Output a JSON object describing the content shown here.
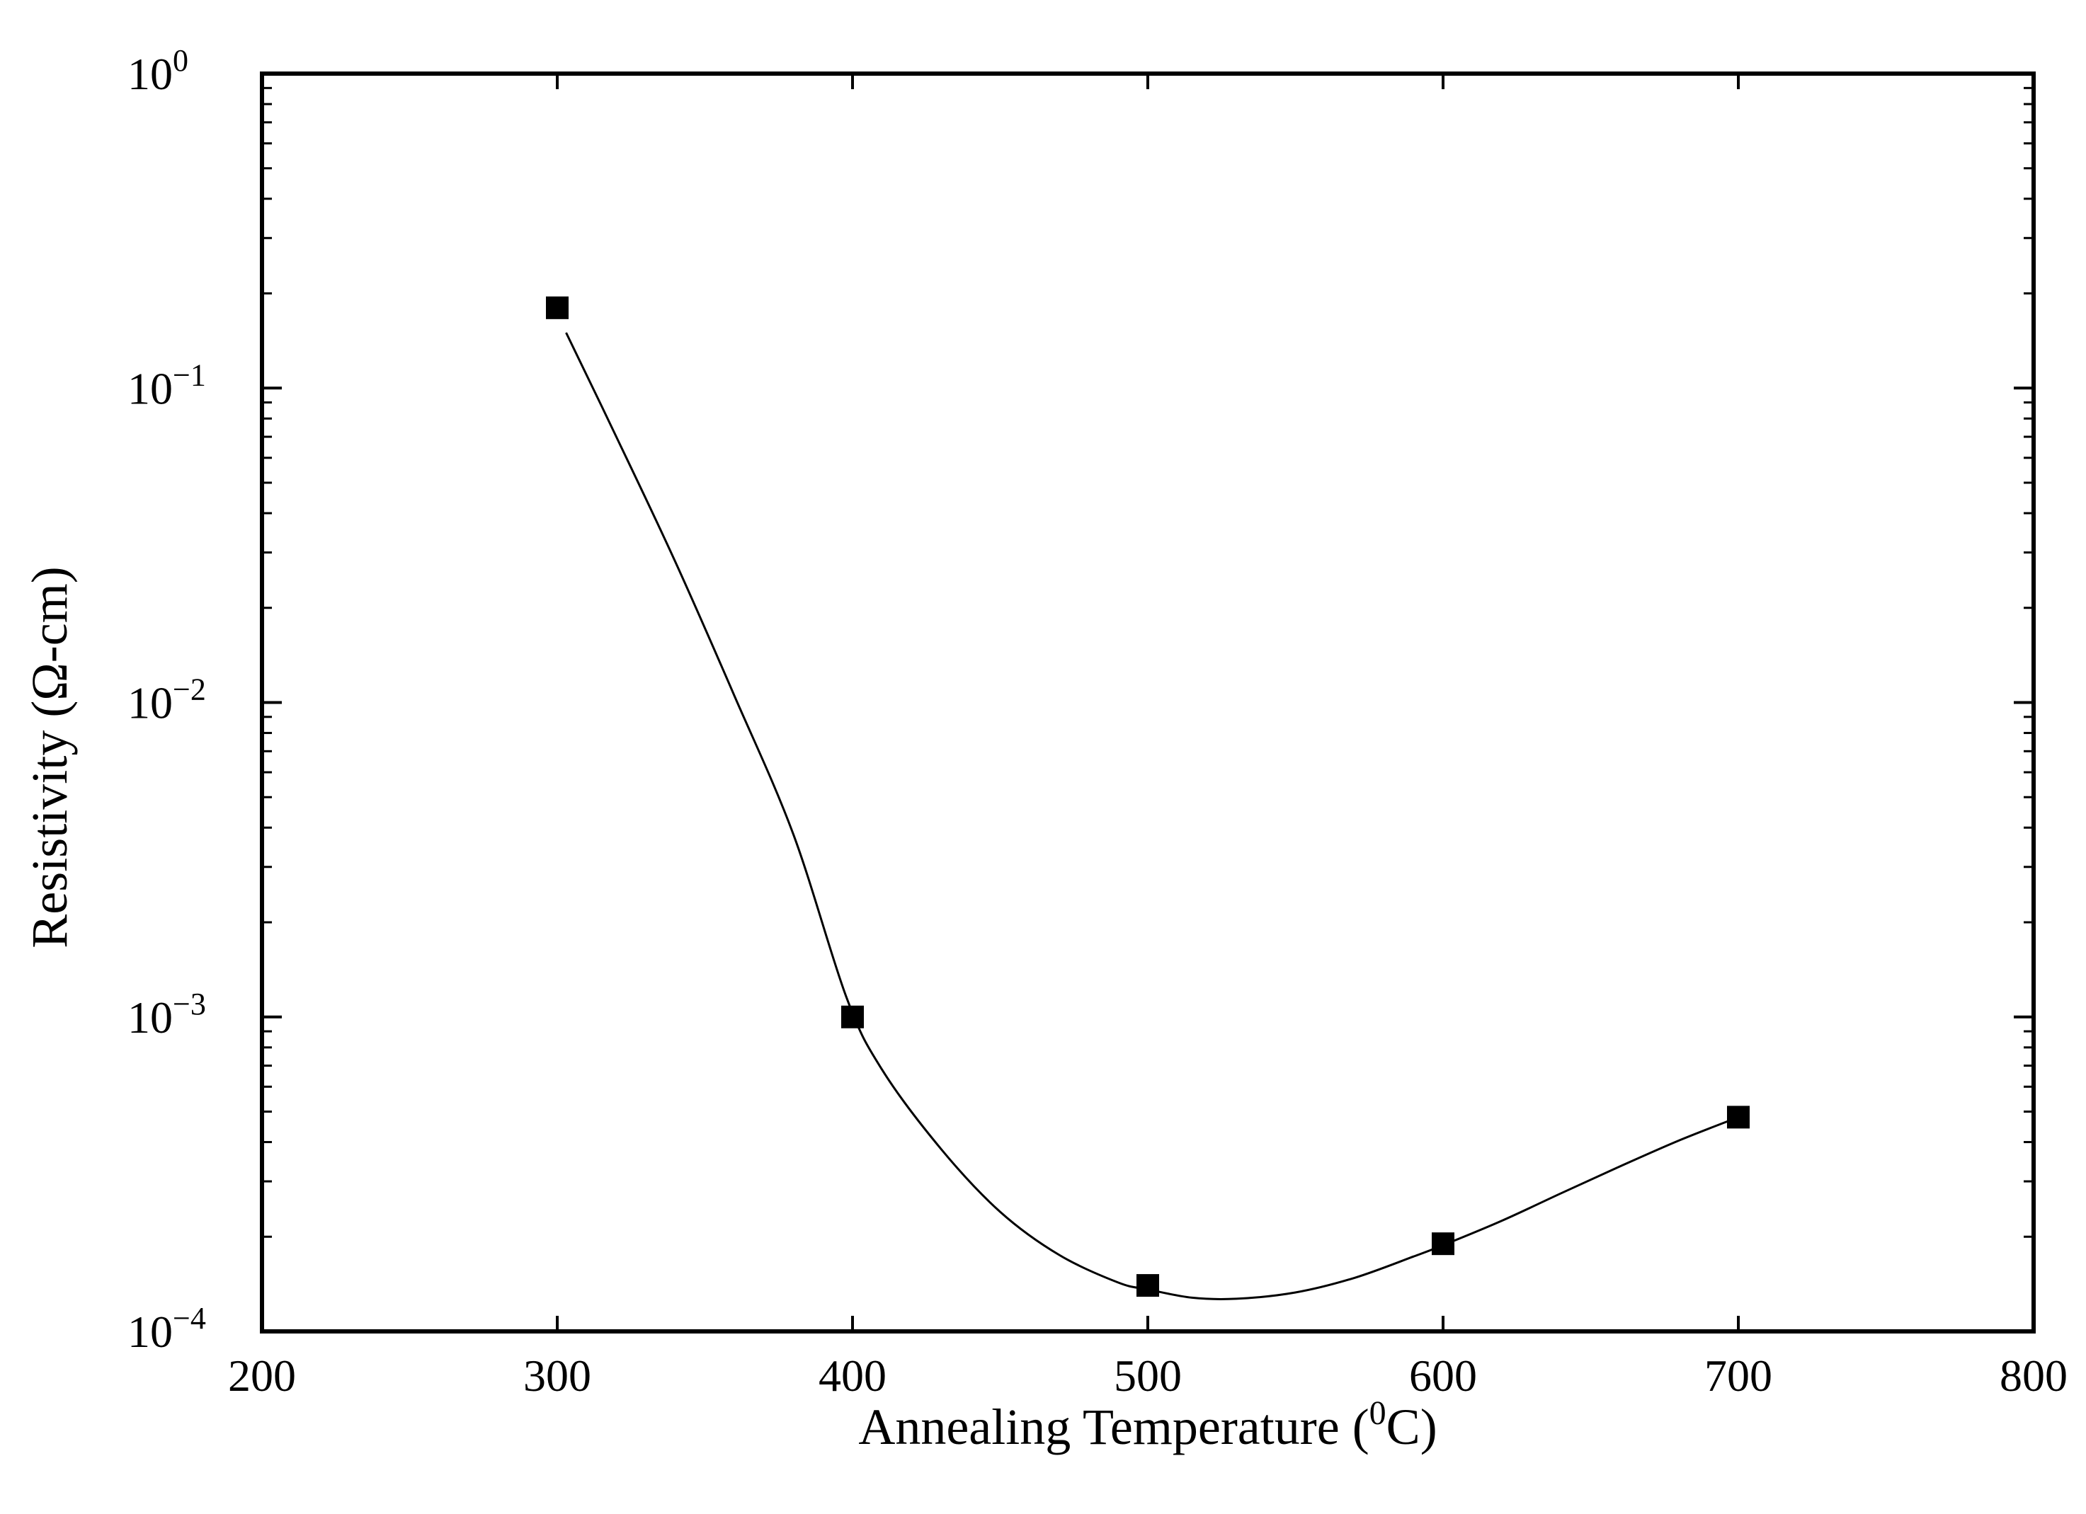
{
  "chart_data": {
    "type": "scatter",
    "title": "",
    "xlabel_main": "Annealing Temperature (",
    "xlabel_sup": "0",
    "xlabel_end": "C)",
    "ylabel": "Resistivity (Ω-cm)",
    "xlim": [
      200,
      800
    ],
    "ylim": [
      0.0001,
      1
    ],
    "yscale": "log",
    "x_ticks": [
      {
        "value": 200,
        "label": "200"
      },
      {
        "value": 300,
        "label": "300"
      },
      {
        "value": 400,
        "label": "400"
      },
      {
        "value": 500,
        "label": "500"
      },
      {
        "value": 600,
        "label": "600"
      },
      {
        "value": 700,
        "label": "700"
      },
      {
        "value": 800,
        "label": "800"
      }
    ],
    "y_ticks": [
      {
        "value": 1,
        "base": "10",
        "exp": "0"
      },
      {
        "value": 0.1,
        "base": "10",
        "exp": "−1"
      },
      {
        "value": 0.01,
        "base": "10",
        "exp": "−2"
      },
      {
        "value": 0.001,
        "base": "10",
        "exp": "−3"
      },
      {
        "value": 0.0001,
        "base": "10",
        "exp": "−4"
      }
    ],
    "series": [
      {
        "name": "Resistivity",
        "marker": "square",
        "color": "#000000",
        "x": [
          300,
          400,
          500,
          600,
          700
        ],
        "y": [
          0.18,
          0.001,
          0.00014,
          0.00019,
          0.00048
        ]
      }
    ],
    "fit_curve": {
      "color": "#000000",
      "x": [
        303,
        320,
        340,
        360,
        380,
        398,
        410,
        430,
        450,
        470,
        490,
        500,
        515,
        530,
        550,
        570,
        590,
        600,
        620,
        640,
        660,
        680,
        700
      ],
      "y": [
        0.15,
        0.07,
        0.028,
        0.0105,
        0.0038,
        0.00115,
        0.00068,
        0.00038,
        0.00024,
        0.000175,
        0.000143,
        0.000136,
        0.000128,
        0.000127,
        0.000133,
        0.000148,
        0.000173,
        0.000188,
        0.000225,
        0.000275,
        0.000335,
        0.000405,
        0.00048
      ]
    },
    "grid": false,
    "legend": "none"
  }
}
